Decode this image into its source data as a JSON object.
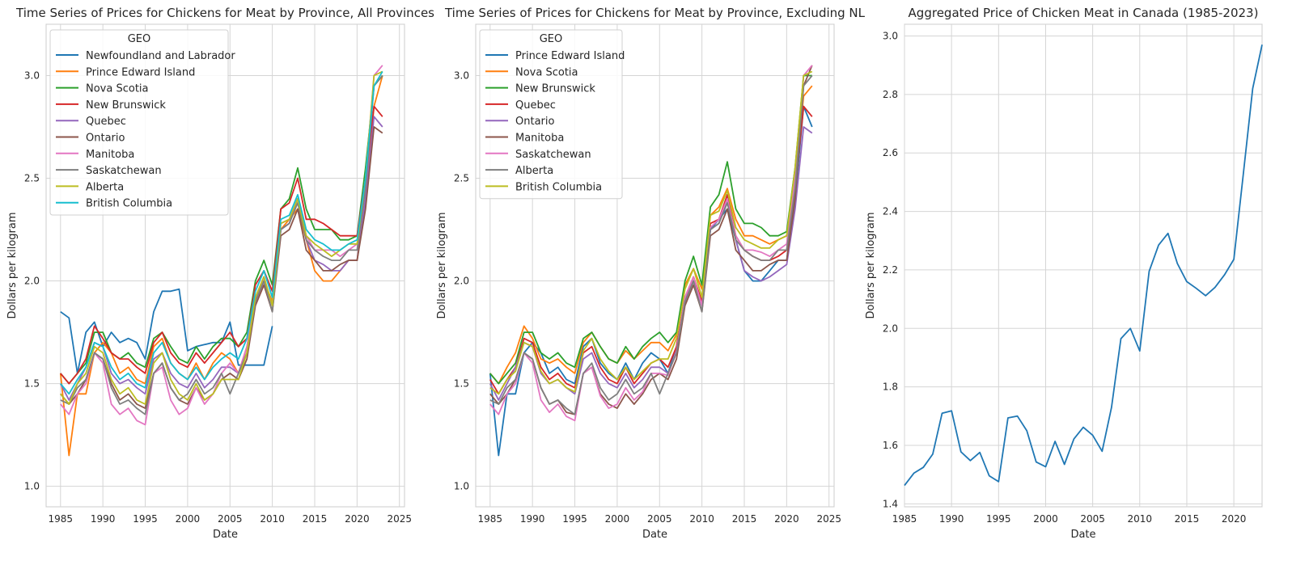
{
  "chart_data": [
    {
      "type": "line",
      "title": "Time Series of Prices for Chickens for Meat by Province, All Provinces",
      "xlabel": "Date",
      "ylabel": "Dollars per kilogram",
      "xlim": [
        1983.3,
        2025.6
      ],
      "ylim": [
        0.9,
        3.25
      ],
      "xticks": [
        1985,
        1990,
        1995,
        2000,
        2005,
        2010,
        2015,
        2020,
        2025
      ],
      "yticks": [
        1.0,
        1.5,
        2.0,
        2.5,
        3.0
      ],
      "grid": true,
      "legend": {
        "title": "GEO",
        "position": "top-left"
      },
      "x": [
        1985,
        1986,
        1987,
        1988,
        1989,
        1990,
        1991,
        1992,
        1993,
        1994,
        1995,
        1996,
        1997,
        1998,
        1999,
        2000,
        2001,
        2002,
        2003,
        2004,
        2005,
        2006,
        2007,
        2008,
        2009,
        2010,
        2011,
        2012,
        2013,
        2014,
        2015,
        2016,
        2017,
        2018,
        2019,
        2020,
        2021,
        2022,
        2023
      ],
      "series": [
        {
          "name": "Newfoundland and Labrador",
          "color": "#1f77b4",
          "values": [
            1.85,
            1.82,
            1.55,
            1.75,
            1.8,
            1.68,
            1.75,
            1.7,
            1.72,
            1.7,
            1.62,
            1.85,
            1.95,
            1.95,
            1.96,
            1.66,
            1.68,
            1.69,
            1.7,
            1.7,
            1.8,
            1.59,
            1.59,
            1.59,
            1.59,
            1.78,
            null,
            null,
            null,
            null,
            null,
            null,
            null,
            null,
            null,
            null,
            null,
            null,
            null
          ]
        },
        {
          "name": "Prince Edward Island",
          "color": "#ff7f0e",
          "values": [
            1.55,
            1.15,
            1.45,
            1.45,
            1.65,
            1.7,
            1.65,
            1.55,
            1.58,
            1.52,
            1.5,
            1.68,
            1.72,
            1.6,
            1.55,
            1.52,
            1.6,
            1.52,
            1.6,
            1.65,
            1.62,
            1.55,
            1.68,
            1.9,
            2.0,
            1.9,
            2.25,
            2.3,
            2.35,
            2.2,
            2.05,
            2.0,
            2.0,
            2.05,
            2.1,
            2.1,
            2.4,
            2.85,
            3.0
          ]
        },
        {
          "name": "Nova Scotia",
          "color": "#2ca02c",
          "values": [
            1.55,
            1.5,
            1.55,
            1.6,
            1.75,
            1.75,
            1.65,
            1.62,
            1.65,
            1.6,
            1.58,
            1.72,
            1.75,
            1.68,
            1.62,
            1.6,
            1.68,
            1.62,
            1.68,
            1.72,
            1.72,
            1.68,
            1.75,
            2.0,
            2.1,
            1.98,
            2.35,
            2.4,
            2.55,
            2.35,
            2.25,
            2.25,
            2.25,
            2.2,
            2.2,
            2.22,
            2.55,
            2.95,
            3.0
          ]
        },
        {
          "name": "New Brunswick",
          "color": "#d62728",
          "values": [
            1.55,
            1.5,
            1.55,
            1.62,
            1.78,
            1.72,
            1.65,
            1.62,
            1.62,
            1.58,
            1.55,
            1.7,
            1.75,
            1.65,
            1.6,
            1.58,
            1.65,
            1.6,
            1.65,
            1.7,
            1.75,
            1.68,
            1.72,
            1.98,
            2.05,
            1.95,
            2.35,
            2.38,
            2.5,
            2.3,
            2.3,
            2.28,
            2.25,
            2.22,
            2.22,
            2.22,
            2.5,
            2.85,
            2.8
          ]
        },
        {
          "name": "Quebec",
          "color": "#9467bd",
          "values": [
            1.5,
            1.42,
            1.5,
            1.58,
            1.7,
            1.68,
            1.55,
            1.5,
            1.52,
            1.48,
            1.45,
            1.62,
            1.65,
            1.55,
            1.5,
            1.48,
            1.55,
            1.48,
            1.52,
            1.58,
            1.58,
            1.55,
            1.65,
            1.9,
            2.0,
            1.88,
            2.25,
            2.28,
            2.4,
            2.2,
            2.1,
            2.08,
            2.05,
            2.05,
            2.1,
            2.1,
            2.4,
            2.8,
            2.75
          ]
        },
        {
          "name": "Ontario",
          "color": "#8c564b",
          "values": [
            1.45,
            1.4,
            1.45,
            1.52,
            1.65,
            1.62,
            1.5,
            1.42,
            1.45,
            1.4,
            1.38,
            1.55,
            1.6,
            1.48,
            1.42,
            1.4,
            1.48,
            1.42,
            1.45,
            1.52,
            1.55,
            1.52,
            1.62,
            1.88,
            1.98,
            1.85,
            2.22,
            2.25,
            2.35,
            2.15,
            2.1,
            2.05,
            2.05,
            2.08,
            2.1,
            2.1,
            2.35,
            2.75,
            2.72
          ]
        },
        {
          "name": "Manitoba",
          "color": "#e377c2",
          "values": [
            1.4,
            1.35,
            1.45,
            1.5,
            1.65,
            1.6,
            1.4,
            1.35,
            1.38,
            1.32,
            1.3,
            1.55,
            1.58,
            1.42,
            1.35,
            1.38,
            1.48,
            1.4,
            1.45,
            1.55,
            1.6,
            1.55,
            1.68,
            1.92,
            2.02,
            1.88,
            2.28,
            2.3,
            2.4,
            2.22,
            2.15,
            2.15,
            2.15,
            2.12,
            2.15,
            2.18,
            2.5,
            3.0,
            3.05
          ]
        },
        {
          "name": "Saskatchewan",
          "color": "#7f7f7f",
          "values": [
            1.42,
            1.4,
            1.48,
            1.52,
            1.65,
            1.62,
            1.48,
            1.4,
            1.42,
            1.38,
            1.35,
            1.55,
            1.6,
            1.48,
            1.42,
            1.45,
            1.52,
            1.45,
            1.48,
            1.55,
            1.45,
            1.55,
            1.65,
            1.9,
            2.0,
            1.85,
            2.25,
            2.28,
            2.38,
            2.2,
            2.15,
            2.12,
            2.1,
            2.1,
            2.15,
            2.15,
            2.45,
            2.95,
            3.0
          ]
        },
        {
          "name": "Alberta",
          "color": "#bcbd22",
          "values": [
            1.45,
            1.4,
            1.5,
            1.55,
            1.68,
            1.65,
            1.52,
            1.45,
            1.48,
            1.42,
            1.4,
            1.6,
            1.65,
            1.52,
            1.45,
            1.42,
            1.5,
            1.42,
            1.45,
            1.52,
            1.52,
            1.52,
            1.65,
            1.92,
            2.02,
            1.88,
            2.28,
            2.3,
            2.4,
            2.22,
            2.18,
            2.15,
            2.12,
            2.15,
            2.18,
            2.18,
            2.5,
            3.0,
            3.02
          ]
        },
        {
          "name": "British Columbia",
          "color": "#17becf",
          "values": [
            1.5,
            1.45,
            1.52,
            1.58,
            1.7,
            1.68,
            1.58,
            1.52,
            1.55,
            1.5,
            1.48,
            1.65,
            1.7,
            1.6,
            1.55,
            1.52,
            1.58,
            1.52,
            1.58,
            1.62,
            1.65,
            1.62,
            1.72,
            1.95,
            2.05,
            1.92,
            2.3,
            2.32,
            2.42,
            2.25,
            2.2,
            2.18,
            2.15,
            2.15,
            2.18,
            2.2,
            2.5,
            2.95,
            3.02
          ]
        }
      ]
    },
    {
      "type": "line",
      "title": "Time Series of Prices for Chickens for Meat by Province, Excluding NL",
      "xlabel": "Date",
      "ylabel": "Dollars per kilogram",
      "xlim": [
        1983.3,
        2025.6
      ],
      "ylim": [
        0.9,
        3.25
      ],
      "xticks": [
        1985,
        1990,
        1995,
        2000,
        2005,
        2010,
        2015,
        2020,
        2025
      ],
      "yticks": [
        1.0,
        1.5,
        2.0,
        2.5,
        3.0
      ],
      "grid": true,
      "legend": {
        "title": "GEO",
        "position": "top-left"
      },
      "x": [
        1985,
        1986,
        1987,
        1988,
        1989,
        1990,
        1991,
        1992,
        1993,
        1994,
        1995,
        1996,
        1997,
        1998,
        1999,
        2000,
        2001,
        2002,
        2003,
        2004,
        2005,
        2006,
        2007,
        2008,
        2009,
        2010,
        2011,
        2012,
        2013,
        2014,
        2015,
        2016,
        2017,
        2018,
        2019,
        2020,
        2021,
        2022,
        2023
      ],
      "series": [
        {
          "name": "Prince Edward Island",
          "color": "#1f77b4",
          "values": [
            1.55,
            1.15,
            1.45,
            1.45,
            1.65,
            1.7,
            1.65,
            1.55,
            1.58,
            1.52,
            1.5,
            1.68,
            1.72,
            1.6,
            1.55,
            1.52,
            1.6,
            1.52,
            1.6,
            1.65,
            1.62,
            1.55,
            1.68,
            1.9,
            2.0,
            1.9,
            2.25,
            2.3,
            2.35,
            2.2,
            2.05,
            2.0,
            2.0,
            2.05,
            2.1,
            2.1,
            2.4,
            2.85,
            2.75
          ]
        },
        {
          "name": "Nova Scotia",
          "color": "#ff7f0e",
          "values": [
            1.55,
            1.5,
            1.58,
            1.65,
            1.78,
            1.72,
            1.62,
            1.6,
            1.62,
            1.58,
            1.55,
            1.7,
            1.75,
            1.68,
            1.62,
            1.6,
            1.66,
            1.62,
            1.66,
            1.7,
            1.7,
            1.66,
            1.74,
            1.98,
            2.06,
            1.96,
            2.32,
            2.36,
            2.45,
            2.3,
            2.22,
            2.22,
            2.2,
            2.18,
            2.2,
            2.22,
            2.5,
            2.9,
            2.95
          ]
        },
        {
          "name": "New Brunswick",
          "color": "#2ca02c",
          "values": [
            1.55,
            1.5,
            1.55,
            1.6,
            1.75,
            1.75,
            1.65,
            1.62,
            1.65,
            1.6,
            1.58,
            1.72,
            1.75,
            1.68,
            1.62,
            1.6,
            1.68,
            1.62,
            1.68,
            1.72,
            1.75,
            1.7,
            1.75,
            2.0,
            2.12,
            1.98,
            2.36,
            2.42,
            2.58,
            2.35,
            2.28,
            2.28,
            2.26,
            2.22,
            2.22,
            2.24,
            2.55,
            3.0,
            3.0
          ]
        },
        {
          "name": "Quebec",
          "color": "#d62728",
          "values": [
            1.52,
            1.45,
            1.52,
            1.58,
            1.72,
            1.7,
            1.58,
            1.52,
            1.55,
            1.5,
            1.48,
            1.65,
            1.68,
            1.58,
            1.52,
            1.5,
            1.58,
            1.5,
            1.55,
            1.6,
            1.62,
            1.58,
            1.68,
            1.92,
            2.02,
            1.9,
            2.28,
            2.3,
            2.42,
            2.22,
            2.15,
            2.12,
            2.1,
            2.1,
            2.12,
            2.15,
            2.45,
            2.85,
            2.8
          ]
        },
        {
          "name": "Ontario",
          "color": "#9467bd",
          "values": [
            1.5,
            1.42,
            1.5,
            1.58,
            1.7,
            1.68,
            1.55,
            1.5,
            1.52,
            1.48,
            1.45,
            1.62,
            1.65,
            1.55,
            1.5,
            1.48,
            1.55,
            1.48,
            1.52,
            1.58,
            1.58,
            1.55,
            1.65,
            1.9,
            2.0,
            1.88,
            2.25,
            2.28,
            2.4,
            2.2,
            2.05,
            2.02,
            2.0,
            2.02,
            2.05,
            2.08,
            2.35,
            2.75,
            2.72
          ]
        },
        {
          "name": "Manitoba",
          "color": "#8c564b",
          "values": [
            1.45,
            1.4,
            1.45,
            1.52,
            1.65,
            1.62,
            1.48,
            1.4,
            1.42,
            1.36,
            1.35,
            1.55,
            1.58,
            1.45,
            1.4,
            1.38,
            1.45,
            1.4,
            1.45,
            1.52,
            1.55,
            1.52,
            1.62,
            1.88,
            1.98,
            1.85,
            2.22,
            2.25,
            2.35,
            2.15,
            2.1,
            2.05,
            2.05,
            2.08,
            2.1,
            2.1,
            2.4,
            2.95,
            3.05
          ]
        },
        {
          "name": "Saskatchewan",
          "color": "#e377c2",
          "values": [
            1.4,
            1.35,
            1.45,
            1.5,
            1.65,
            1.6,
            1.42,
            1.36,
            1.4,
            1.34,
            1.32,
            1.55,
            1.58,
            1.44,
            1.38,
            1.4,
            1.48,
            1.42,
            1.46,
            1.55,
            1.55,
            1.54,
            1.66,
            1.92,
            2.02,
            1.88,
            2.26,
            2.3,
            2.4,
            2.22,
            2.15,
            2.15,
            2.14,
            2.12,
            2.15,
            2.18,
            2.5,
            3.0,
            3.05
          ]
        },
        {
          "name": "Alberta",
          "color": "#7f7f7f",
          "values": [
            1.42,
            1.4,
            1.48,
            1.52,
            1.65,
            1.62,
            1.48,
            1.4,
            1.42,
            1.38,
            1.35,
            1.55,
            1.6,
            1.48,
            1.42,
            1.45,
            1.52,
            1.45,
            1.48,
            1.55,
            1.45,
            1.55,
            1.65,
            1.9,
            2.0,
            1.85,
            2.25,
            2.28,
            2.38,
            2.2,
            2.15,
            2.12,
            2.1,
            2.1,
            2.15,
            2.15,
            2.45,
            2.95,
            3.0
          ]
        },
        {
          "name": "British Columbia",
          "color": "#bcbd22",
          "values": [
            1.48,
            1.45,
            1.52,
            1.56,
            1.7,
            1.68,
            1.56,
            1.5,
            1.52,
            1.48,
            1.46,
            1.66,
            1.72,
            1.62,
            1.56,
            1.52,
            1.58,
            1.52,
            1.56,
            1.6,
            1.62,
            1.62,
            1.72,
            1.96,
            2.06,
            1.92,
            2.32,
            2.34,
            2.44,
            2.26,
            2.2,
            2.18,
            2.16,
            2.16,
            2.2,
            2.22,
            2.55,
            3.0,
            3.02
          ]
        }
      ]
    },
    {
      "type": "line",
      "title": "Aggregated Price of Chicken Meat in Canada (1985-2023)",
      "xlabel": "Date",
      "ylabel": "Dollars per kilogram",
      "xlim": [
        1985,
        2023
      ],
      "ylim": [
        1.39,
        3.04
      ],
      "xticks": [
        1985,
        1990,
        1995,
        2000,
        2005,
        2010,
        2015,
        2020
      ],
      "yticks": [
        1.4,
        1.6,
        1.8,
        2.0,
        2.2,
        2.4,
        2.6,
        2.8,
        3.0
      ],
      "grid": true,
      "x": [
        1985,
        1986,
        1987,
        1988,
        1989,
        1990,
        1991,
        1992,
        1993,
        1994,
        1995,
        1996,
        1997,
        1998,
        1999,
        2000,
        2001,
        2002,
        2003,
        2004,
        2005,
        2006,
        2007,
        2008,
        2009,
        2010,
        2011,
        2012,
        2013,
        2014,
        2015,
        2016,
        2017,
        2018,
        2019,
        2020,
        2021,
        2022,
        2023
      ],
      "series": [
        {
          "color": "#1f77b4",
          "values": [
            1.463,
            1.505,
            1.525,
            1.57,
            1.71,
            1.718,
            1.578,
            1.548,
            1.576,
            1.496,
            1.476,
            1.694,
            1.7,
            1.65,
            1.543,
            1.527,
            1.614,
            1.535,
            1.622,
            1.662,
            1.635,
            1.58,
            1.73,
            1.965,
            2.0,
            1.923,
            2.195,
            2.285,
            2.325,
            2.222,
            2.16,
            2.137,
            2.112,
            2.14,
            2.183,
            2.236,
            2.525,
            2.82,
            2.97
          ]
        }
      ]
    }
  ]
}
